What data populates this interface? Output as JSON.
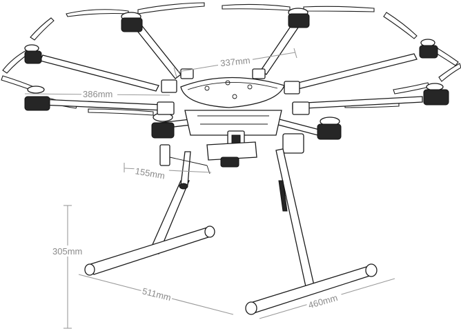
{
  "dimensions": {
    "top_arm_spacing": "337mm",
    "arm_length": "386mm",
    "gimbal_depth": "155mm",
    "height": "305mm",
    "skid_width": "511mm",
    "skid_length": "460mm"
  },
  "icons": [
    "hexacopter-drone-drawing"
  ],
  "colors": {
    "line": "#1a1a1a",
    "dimension": "#8a8a8a",
    "background": "#ffffff"
  }
}
